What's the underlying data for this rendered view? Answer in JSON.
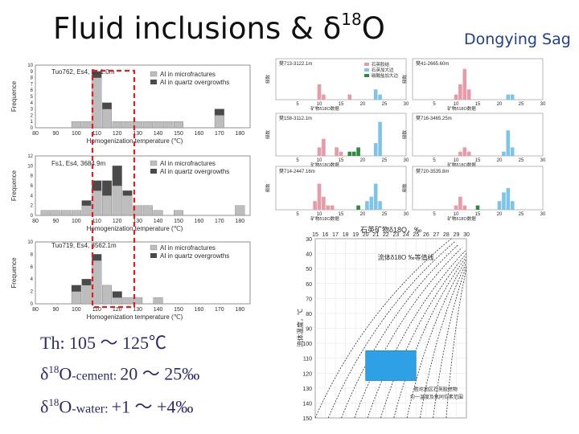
{
  "title": {
    "prefix": "Fluid inclusions  &  δ",
    "sup": "18",
    "suffix": "O"
  },
  "subtitle": "Dongying Sag",
  "summary": {
    "th": "Th: 105 ～ 125℃",
    "cement_prefix": "δ",
    "cement_sup": "18",
    "cement_o": "O",
    "cement_label": "-cement: ",
    "cement_value": "20 ～ 25‰",
    "water_prefix": "δ",
    "water_sup": "18",
    "water_o": "O",
    "water_label": "-water: ",
    "water_value": "+1 ～ +4‰"
  },
  "colors": {
    "micro": "#bdbdbd",
    "quartz": "#4a4a4a",
    "red_box": "#e02020",
    "pink": "#e89aa6",
    "blue": "#7ec3e8",
    "green": "#2e8b3e",
    "blue_box": "#2ea0e6",
    "ink": "#2a2a2a"
  },
  "chart_data": [
    {
      "type": "bar",
      "title": "Tuo762, Es4, 3...1.0m",
      "xlabel": "Homogenization temperature (℃)",
      "ylabel": "Frequence",
      "x_ticks": [
        80,
        90,
        100,
        110,
        120,
        130,
        140,
        150,
        160,
        170,
        180
      ],
      "y_ticks": [
        0,
        1,
        2,
        3,
        4,
        5,
        6,
        7,
        8,
        9,
        10
      ],
      "ylim": [
        0,
        10
      ],
      "xlim": [
        80,
        185
      ],
      "legend": [
        "AI in microfractures",
        "AI in quartz overgrowths"
      ],
      "series": [
        {
          "name": "AI in microfractures",
          "x": [
            100,
            105,
            110,
            115,
            120,
            125,
            130,
            135,
            140,
            145,
            150,
            170
          ],
          "values": [
            1,
            1,
            8,
            3,
            1,
            1,
            1,
            1,
            1,
            1,
            1,
            2
          ]
        },
        {
          "name": "AI in quartz overgrowths",
          "x": [
            110,
            115,
            170
          ],
          "values": [
            1,
            1,
            1
          ]
        }
      ]
    },
    {
      "type": "bar",
      "title": "Fs1, Es4, 3684.9m",
      "xlabel": "Homogenization temperature (℃)",
      "ylabel": "Frequence",
      "x_ticks": [
        80,
        90,
        100,
        110,
        120,
        130,
        140,
        150,
        160,
        170,
        180
      ],
      "y_ticks": [
        0,
        2,
        4,
        6,
        8,
        10,
        12
      ],
      "ylim": [
        0,
        12
      ],
      "xlim": [
        80,
        185
      ],
      "legend": [
        "AI in microfractures",
        "AI in quartz overgrowths"
      ],
      "series": [
        {
          "name": "AI in microfractures",
          "x": [
            85,
            90,
            95,
            100,
            105,
            110,
            115,
            120,
            125,
            130,
            135,
            140,
            150,
            180
          ],
          "values": [
            1,
            1,
            1,
            1,
            2,
            5,
            4,
            6,
            4,
            2,
            2,
            1,
            1,
            2
          ]
        },
        {
          "name": "AI in quartz overgrowths",
          "x": [
            105,
            110,
            115,
            120,
            125
          ],
          "values": [
            1,
            2,
            3,
            4,
            1
          ]
        }
      ]
    },
    {
      "type": "bar",
      "title": "Tuo719, Es4, 3562.1m",
      "xlabel": "Homogenization temperature (℃)",
      "ylabel": "Frequence",
      "x_ticks": [
        80,
        90,
        100,
        110,
        120,
        130,
        140,
        150,
        160,
        170,
        180
      ],
      "y_ticks": [
        0,
        2,
        4,
        6,
        8,
        10
      ],
      "ylim": [
        0,
        10
      ],
      "xlim": [
        80,
        185
      ],
      "legend": [
        "AI in microfractures",
        "AI in quartz overgrowths"
      ],
      "series": [
        {
          "name": "AI in microfractures",
          "x": [
            100,
            105,
            110,
            115,
            120,
            125,
            130,
            140
          ],
          "values": [
            2,
            3,
            7,
            3,
            1,
            1,
            1,
            1
          ]
        },
        {
          "name": "AI in quartz overgrowths",
          "x": [
            100,
            105,
            110,
            120
          ],
          "values": [
            1,
            1,
            1,
            1
          ]
        }
      ]
    },
    {
      "type": "bar",
      "title": "樊713-3122.1m",
      "xlabel": "矿物δ18O数据",
      "ylabel": "频数",
      "x_ticks": [
        5,
        10,
        15,
        20,
        25,
        30
      ],
      "xlim": [
        0,
        30
      ],
      "ylim": [
        0,
        8
      ],
      "legend": [
        "石英胶结",
        "石英加大边",
        "碳酸盐加大边"
      ],
      "series": [
        {
          "name": "石英胶结",
          "x": [
            10,
            11,
            17
          ],
          "values": [
            3,
            1,
            1
          ]
        },
        {
          "name": "石英加大边",
          "x": [
            23,
            24
          ],
          "values": [
            2,
            1
          ]
        }
      ]
    },
    {
      "type": "bar",
      "title": "樊41-2665.60m",
      "xlabel": "矿物δ18O数据",
      "ylabel": "频数",
      "x_ticks": [
        5,
        10,
        15,
        20,
        25,
        30
      ],
      "xlim": [
        0,
        30
      ],
      "ylim": [
        0,
        8
      ],
      "series": [
        {
          "name": "石英胶结",
          "x": [
            10,
            11,
            12,
            13
          ],
          "values": [
            1,
            3,
            6,
            2
          ]
        },
        {
          "name": "石英加大边",
          "x": [
            22,
            23
          ],
          "values": [
            1,
            1
          ]
        }
      ]
    },
    {
      "type": "bar",
      "title": "樊158-3112.1m",
      "xlabel": "矿物δ18O数据",
      "ylabel": "频数",
      "x_ticks": [
        5,
        10,
        15,
        20,
        25,
        30
      ],
      "xlim": [
        0,
        30
      ],
      "ylim": [
        0,
        10
      ],
      "series": [
        {
          "name": "石英胶结",
          "x": [
            10,
            11,
            14,
            15
          ],
          "values": [
            2,
            4,
            2,
            1
          ]
        },
        {
          "name": "碳酸盐加大边",
          "x": [
            17,
            18,
            19
          ],
          "values": [
            1,
            1,
            2
          ]
        },
        {
          "name": "石英加大边",
          "x": [
            23,
            24
          ],
          "values": [
            3,
            8
          ]
        }
      ]
    },
    {
      "type": "bar",
      "title": "樊716-3465.25m",
      "xlabel": "矿物δ18O数据",
      "ylabel": "频数",
      "x_ticks": [
        5,
        10,
        15,
        20,
        25,
        30
      ],
      "xlim": [
        0,
        30
      ],
      "ylim": [
        0,
        10
      ],
      "series": [
        {
          "name": "石英胶结",
          "x": [
            11,
            12,
            13
          ],
          "values": [
            1,
            2,
            1
          ]
        },
        {
          "name": "石英加大边",
          "x": [
            21,
            22,
            23
          ],
          "values": [
            1,
            6,
            2
          ]
        }
      ]
    },
    {
      "type": "bar",
      "title": "樊714-2447.16m",
      "xlabel": "矿物δ18O数据",
      "ylabel": "频数",
      "x_ticks": [
        5,
        10,
        15,
        20,
        25,
        30
      ],
      "xlim": [
        0,
        30
      ],
      "ylim": [
        0,
        10
      ],
      "series": [
        {
          "name": "石英胶结",
          "x": [
            9,
            10,
            11,
            12,
            13
          ],
          "values": [
            2,
            6,
            3,
            1,
            1
          ]
        },
        {
          "name": "碳酸盐加大边",
          "x": [
            19
          ],
          "values": [
            1
          ]
        },
        {
          "name": "石英加大边",
          "x": [
            21,
            22,
            23,
            24
          ],
          "values": [
            2,
            3,
            6,
            2
          ]
        }
      ]
    },
    {
      "type": "bar",
      "title": "樊720-3535.8m",
      "xlabel": "矿物δ18O数据",
      "ylabel": "频数",
      "x_ticks": [
        5,
        10,
        15,
        20,
        25,
        30
      ],
      "xlim": [
        0,
        30
      ],
      "ylim": [
        0,
        10
      ],
      "series": [
        {
          "name": "石英胶结",
          "x": [
            10,
            11,
            12
          ],
          "values": [
            1,
            3,
            1
          ]
        },
        {
          "name": "碳酸盐加大边",
          "x": [
            15
          ],
          "values": [
            1
          ]
        },
        {
          "name": "石英加大边",
          "x": [
            20,
            21,
            22,
            23
          ],
          "values": [
            2,
            4,
            5,
            2
          ]
        }
      ]
    },
    {
      "type": "line",
      "title": "石英矿物δ18O，‰",
      "xlabel": "石英矿物δ18O，‰",
      "ylabel": "流体温度，℃",
      "legend": "流体δ18O ‰等值线",
      "x_ticks": [
        15,
        16,
        17,
        18,
        19,
        20,
        21,
        22,
        23,
        24,
        25,
        26,
        27,
        28,
        29,
        30
      ],
      "y_ticks": [
        30,
        40,
        50,
        60,
        70,
        80,
        90,
        100,
        110,
        120,
        130,
        140,
        150
      ],
      "xlim": [
        15,
        30
      ],
      "ylim": [
        30,
        150
      ],
      "isolines_count": 11,
      "highlight": {
        "x_range": [
          20,
          25
        ],
        "y_range": [
          105,
          125
        ]
      },
      "annotation": [
        "胜坨地区石英胶结物",
        "均一温度及氧同位素范围"
      ]
    }
  ]
}
